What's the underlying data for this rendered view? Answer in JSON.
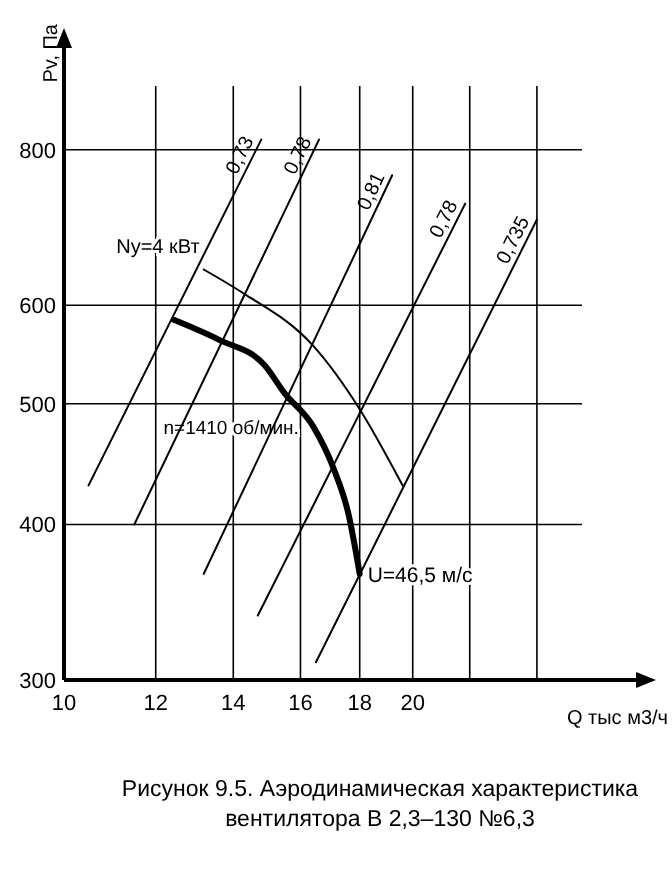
{
  "chart_data": {
    "type": "line",
    "title": "Рисунок 9.5. Аэродинамическая характеристика вентилятора  В 2,3–130 №6,3",
    "xlabel": "Q тыс м3/ч",
    "ylabel": "Pv, Па",
    "log": "xy",
    "grid": true,
    "legend": false,
    "marker": "none",
    "line_style": "solid",
    "xlim": [
      10,
      28
    ],
    "ylim": [
      300,
      900
    ],
    "xticks": [
      10,
      12,
      14,
      16,
      18,
      20,
      {
        "value": 22.4,
        "label": null
      },
      {
        "value": 25.6,
        "label": null
      }
    ],
    "yticks": [
      300,
      400,
      500,
      600,
      800
    ],
    "series": [
      {
        "name": "n=1410 об/мин.",
        "color": "#000000",
        "x": [
          12.44,
          13.6,
          14.9,
          15.5,
          16.4,
          17.1,
          17.6,
          18.0
        ],
        "values": [
          584,
          563,
          537,
          510,
          480,
          443,
          408,
          365
        ]
      },
      {
        "name": "Ny=4 кВт",
        "color": "#000000",
        "x": [
          13.2,
          14.3,
          16.4,
          18.0,
          19.6
        ],
        "values": [
          641,
          613,
          557,
          495,
          430
        ]
      },
      {
        "name": "0,73",
        "color": "#000000",
        "x": [
          10.5,
          14.8
        ],
        "values": [
          430,
          815
        ]
      },
      {
        "name": "0,78",
        "color": "#000000",
        "x": [
          11.5,
          16.6
        ],
        "values": [
          400,
          815
        ]
      },
      {
        "name": "0,81",
        "color": "#000000",
        "x": [
          13.2,
          19.2
        ],
        "values": [
          365,
          763
        ]
      },
      {
        "name": "0,78",
        "color": "#000000",
        "x": [
          14.7,
          22.2
        ],
        "values": [
          338,
          724
        ]
      },
      {
        "name": "0,735",
        "color": "#000000",
        "x": [
          16.5,
          25.6
        ],
        "values": [
          310,
          703
        ]
      }
    ],
    "annotations": [
      {
        "text": "U=46,5 м/с",
        "x": 18.0,
        "y": 365
      }
    ]
  }
}
